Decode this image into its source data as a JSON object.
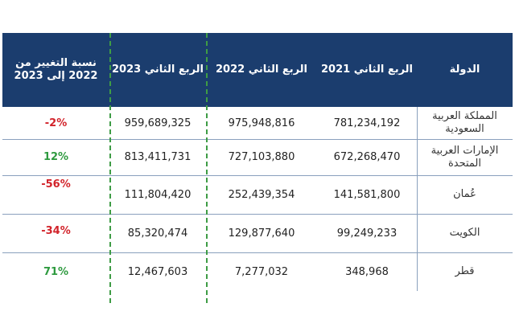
{
  "table": {
    "headers": {
      "country": "الدولة",
      "q2_2021": "الربع الثاني 2021",
      "q2_2022": "الربع الثاني 2022",
      "q2_2023": "الربع الثاني 2023",
      "change": "نسبة التغيير من 2022 إلى 2023"
    },
    "rows": [
      {
        "country": "المملكة العربية السعودية",
        "q2_2021": "781,234,192",
        "q2_2022": "975,948,816",
        "q2_2023": "959,689,325",
        "change": "-2%",
        "change_color": "#d2232a"
      },
      {
        "country": "الإمارات العربية المتحدة",
        "q2_2021": "672,268,470",
        "q2_2022": "727,103,880",
        "q2_2023": "813,411,731",
        "change": "12%",
        "change_color": "#2e9a3f"
      },
      {
        "country": "عُمان",
        "q2_2021": "141,581,800",
        "q2_2022": "252,439,354",
        "q2_2023": "111,804,420",
        "change": "-56%",
        "change_color": "#d2232a"
      },
      {
        "country": "الكويت",
        "q2_2021": "99,249,233",
        "q2_2022": "129,877,640",
        "q2_2023": "85,320,474",
        "change": "-34%",
        "change_color": "#d2232a"
      },
      {
        "country": "قطر",
        "q2_2021": "348,968",
        "q2_2022": "7,277,032",
        "q2_2023": "12,467,603",
        "change": "71%",
        "change_color": "#2e9a3f"
      }
    ]
  }
}
